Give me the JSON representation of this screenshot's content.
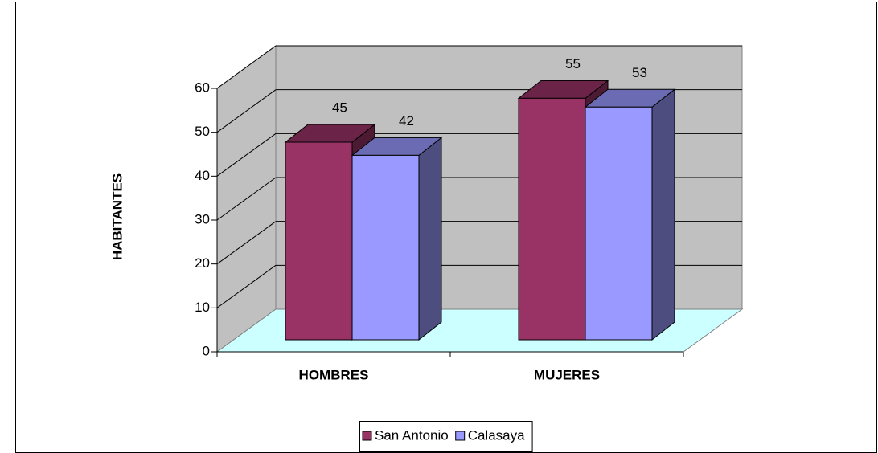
{
  "chart_data": {
    "type": "bar3d",
    "y_label": "HABITANTES",
    "categories": [
      "HOMBRES",
      "MUJERES"
    ],
    "series": [
      {
        "name": "San Antonio",
        "color": "#993366",
        "values": [
          45,
          55
        ]
      },
      {
        "name": "Calasaya",
        "color": "#9999ff",
        "values": [
          42,
          53
        ]
      }
    ],
    "ylim": [
      0,
      60
    ],
    "yticks": [
      0,
      10,
      20,
      30,
      40,
      50,
      60
    ],
    "grid": true,
    "legend": "bottom",
    "data_labels": true
  }
}
